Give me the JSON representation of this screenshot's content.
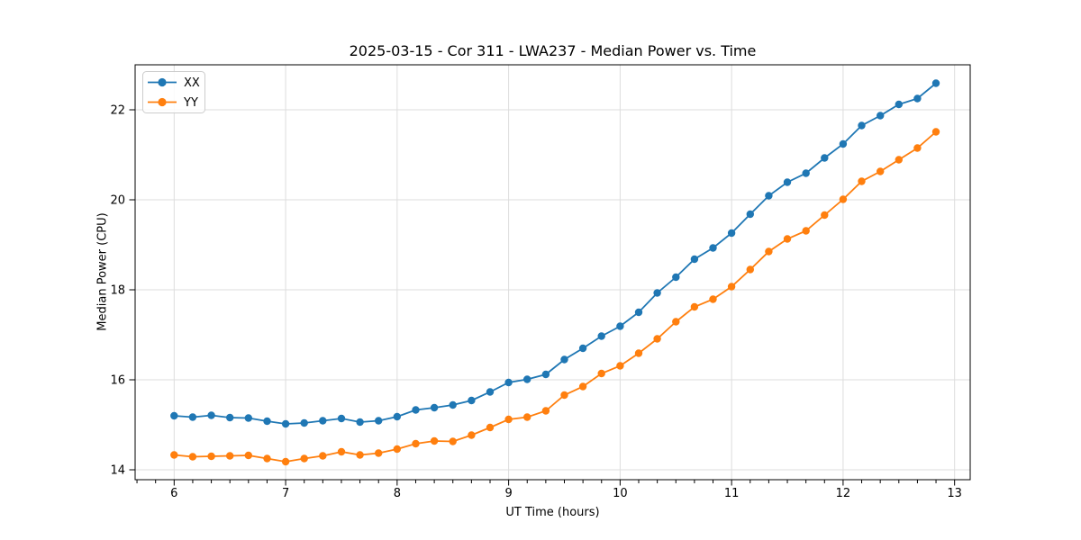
{
  "figure": {
    "title": "2025-03-15 - Cor 311 - LWA237 - Median Power vs. Time",
    "xlabel": "UT Time (hours)",
    "ylabel": "Median Power (CPU)"
  },
  "legend": {
    "entries": [
      {
        "label": "XX",
        "color": "#1f77b4"
      },
      {
        "label": "YY",
        "color": "#ff7f0e"
      }
    ]
  },
  "colors": {
    "series_blue": "#1f77b4",
    "series_orange": "#ff7f0e",
    "grid": "#dddddd",
    "spine": "#000000",
    "legend_border": "#cccccc"
  },
  "chart_data": {
    "type": "line",
    "title": "2025-03-15 - Cor 311 - LWA237 - Median Power vs. Time",
    "xlabel": "UT Time (hours)",
    "ylabel": "Median Power (CPU)",
    "xlim": [
      5.65,
      13.14
    ],
    "ylim": [
      13.78,
      23.0
    ],
    "x_ticks": [
      6,
      7,
      8,
      9,
      10,
      11,
      12,
      13
    ],
    "y_ticks": [
      14,
      16,
      18,
      20,
      22
    ],
    "x_minor_step": 0.166667,
    "grid": true,
    "legend_position": "upper-left",
    "marker": "circle",
    "x": [
      6.0,
      6.1667,
      6.3333,
      6.5,
      6.6667,
      6.8333,
      7.0,
      7.1667,
      7.3333,
      7.5,
      7.6667,
      7.8333,
      8.0,
      8.1667,
      8.3333,
      8.5,
      8.6667,
      8.8333,
      9.0,
      9.1667,
      9.3333,
      9.5,
      9.6667,
      9.8333,
      10.0,
      10.1667,
      10.3333,
      10.5,
      10.6667,
      10.8333,
      11.0,
      11.1667,
      11.3333,
      11.5,
      11.6667,
      11.8333,
      12.0,
      12.1667,
      12.3333,
      12.5,
      12.6667,
      12.8333
    ],
    "series": [
      {
        "name": "XX",
        "color": "#1f77b4",
        "values": [
          15.2,
          15.17,
          15.21,
          15.16,
          15.15,
          15.08,
          15.02,
          15.04,
          15.09,
          15.14,
          15.06,
          15.09,
          15.18,
          15.33,
          15.38,
          15.44,
          15.54,
          15.73,
          15.94,
          16.01,
          16.12,
          16.45,
          16.7,
          16.97,
          17.19,
          17.5,
          17.93,
          18.28,
          18.68,
          18.93,
          19.26,
          19.68,
          20.09,
          20.39,
          20.59,
          20.93,
          21.24,
          21.65,
          21.87,
          22.12,
          22.25,
          22.59
        ]
      },
      {
        "name": "YY",
        "color": "#ff7f0e",
        "values": [
          14.33,
          14.29,
          14.3,
          14.31,
          14.32,
          14.25,
          14.18,
          14.25,
          14.31,
          14.4,
          14.33,
          14.37,
          14.46,
          14.58,
          14.64,
          14.63,
          14.77,
          14.94,
          15.12,
          15.17,
          15.31,
          15.66,
          15.85,
          16.14,
          16.31,
          16.59,
          16.91,
          17.29,
          17.62,
          17.79,
          18.07,
          18.45,
          18.85,
          19.13,
          19.31,
          19.66,
          20.01,
          20.41,
          20.63,
          20.89,
          21.15,
          21.51
        ]
      }
    ]
  }
}
